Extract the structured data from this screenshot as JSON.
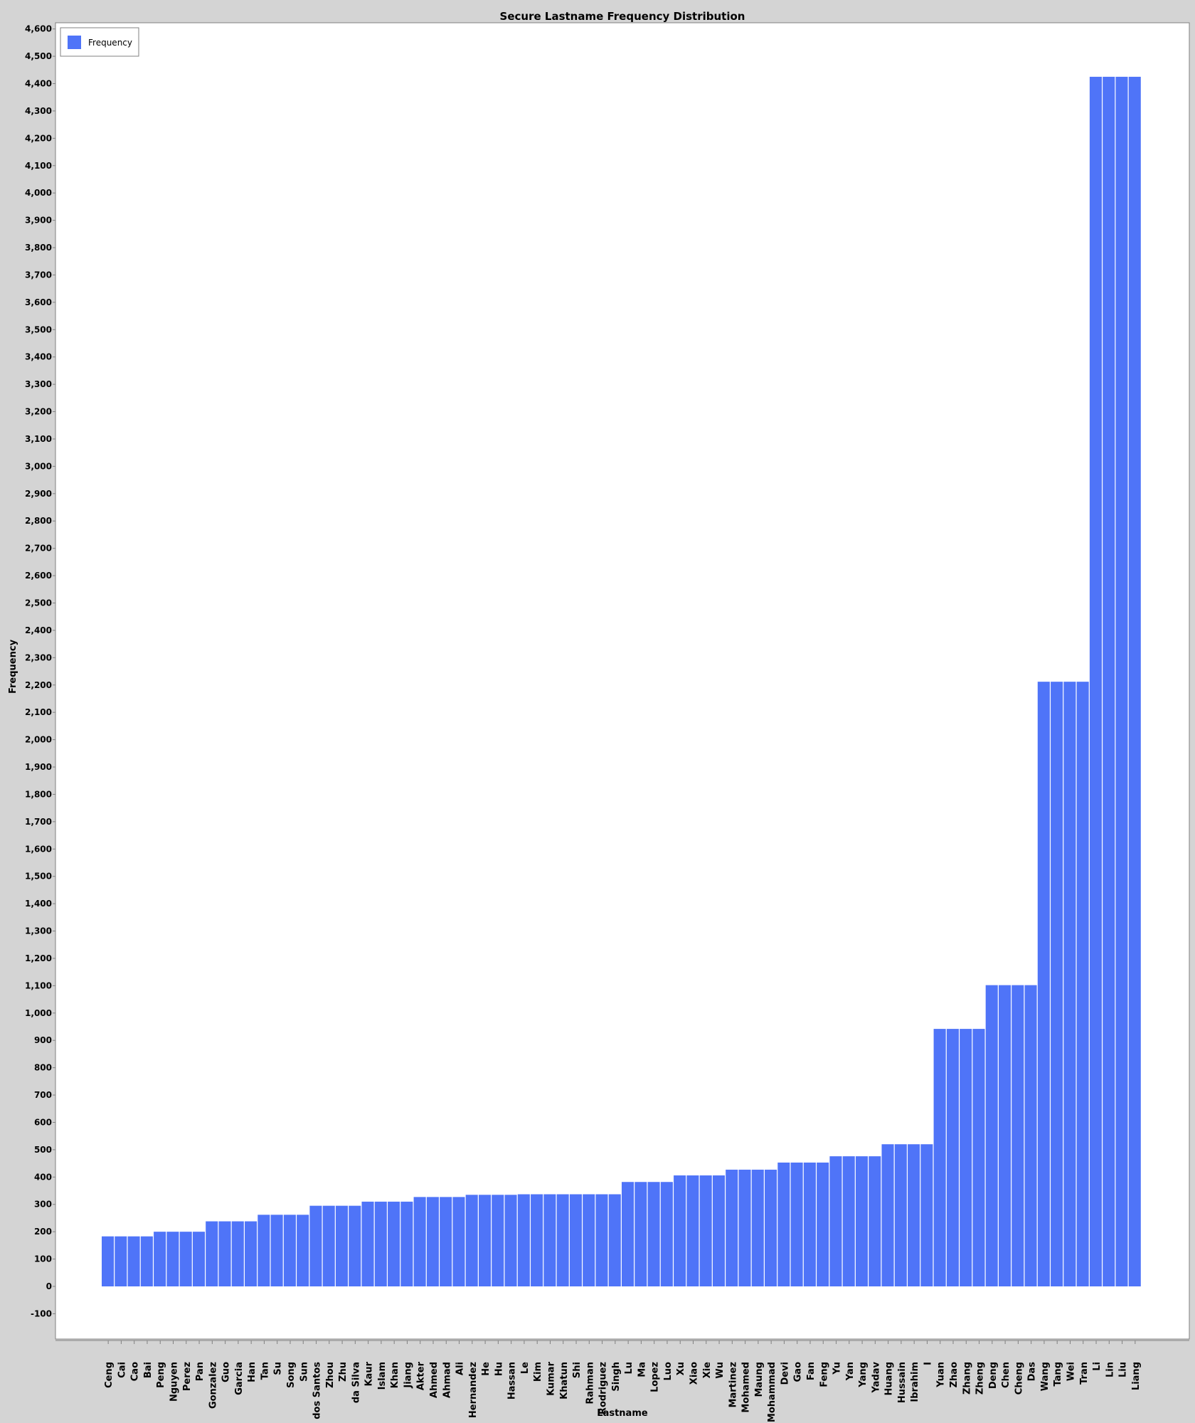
{
  "chart_data": {
    "type": "bar",
    "title": "Secure Lastname Frequency Distribution",
    "xlabel": "Lastname",
    "ylabel": "Frequency",
    "ylim": [
      -200,
      4620
    ],
    "ytick_step": 100,
    "ytick_min": -100,
    "ytick_max": 4600,
    "grid": false,
    "legend": {
      "position": "top-left",
      "entries": [
        "Frequency"
      ]
    },
    "bar_color": "#4f74f8",
    "series": [
      {
        "name": "Frequency"
      }
    ],
    "categories": [
      "Ceng",
      "Cai",
      "Cao",
      "Bai",
      "Peng",
      "Nguyen",
      "Perez",
      "Pan",
      "Gonzalez",
      "Guo",
      "Garcia",
      "Han",
      "Tan",
      "Su",
      "Song",
      "Sun",
      "dos Santos",
      "Zhou",
      "Zhu",
      "da Silva",
      "Kaur",
      "Islam",
      "Khan",
      "Jiang",
      "Akter",
      "Ahmed",
      "Ahmad",
      "Ali",
      "Hernandez",
      "He",
      "Hu",
      "Hassan",
      "Le",
      "Kim",
      "Kumar",
      "Khatun",
      "Shi",
      "Rahman",
      "Rodriguez",
      "Singh",
      "Lu",
      "Ma",
      "Lopez",
      "Luo",
      "Xu",
      "Xiao",
      "Xie",
      "Wu",
      "Martinez",
      "Mohamed",
      "Maung",
      "Mohammad",
      "Devi",
      "Gao",
      "Fan",
      "Feng",
      "Yu",
      "Yan",
      "Yang",
      "Yadav",
      "Huang",
      "Hussain",
      "Ibrahim",
      "I",
      "Yuan",
      "Zhao",
      "Zhang",
      "Zheng",
      "Deng",
      "Chen",
      "Cheng",
      "Das",
      "Wang",
      "Tang",
      "Wei",
      "Tran",
      "Li",
      "Lin",
      "Liu",
      "Liang"
    ],
    "values": [
      183,
      183,
      183,
      183,
      200,
      200,
      200,
      200,
      238,
      238,
      238,
      238,
      262,
      262,
      262,
      262,
      295,
      295,
      295,
      295,
      310,
      310,
      310,
      310,
      327,
      327,
      327,
      327,
      335,
      335,
      335,
      335,
      337,
      337,
      337,
      337,
      337,
      337,
      337,
      337,
      382,
      382,
      382,
      382,
      406,
      406,
      406,
      406,
      427,
      427,
      427,
      427,
      453,
      453,
      453,
      453,
      476,
      476,
      476,
      476,
      520,
      520,
      520,
      520,
      942,
      942,
      942,
      942,
      1102,
      1102,
      1102,
      1102,
      2212,
      2212,
      2212,
      2212,
      4425,
      4425,
      4425,
      4425
    ]
  }
}
